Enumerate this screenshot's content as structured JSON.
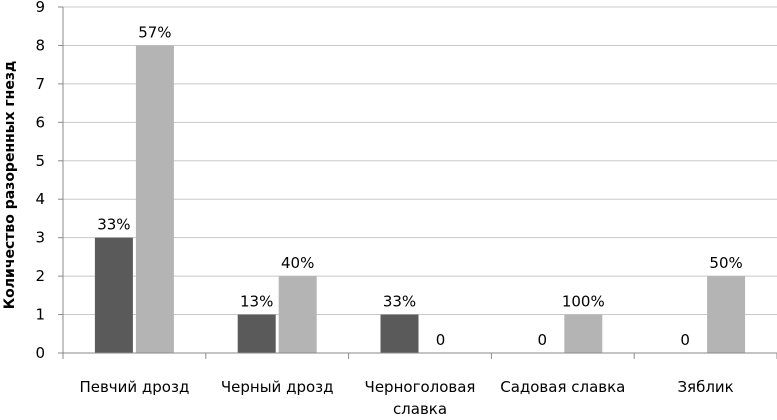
{
  "chart_data": {
    "type": "bar",
    "title": "",
    "xlabel": "",
    "ylabel": "Количество разоренных гнезд",
    "ylim": [
      0,
      9
    ],
    "yticks": [
      0,
      1,
      2,
      3,
      4,
      5,
      6,
      7,
      8,
      9
    ],
    "grid": true,
    "legend": "none",
    "categories": [
      [
        "Певчий дрозд"
      ],
      [
        "Черный дрозд"
      ],
      [
        "Черноголовая",
        "славка"
      ],
      [
        "Садовая славка"
      ],
      [
        "Зяблик"
      ]
    ],
    "series": [
      {
        "color": "#5a5a5a",
        "values": [
          3,
          1,
          1,
          0,
          0
        ],
        "labels": [
          "33%",
          "13%",
          "33%",
          "0",
          "0"
        ]
      },
      {
        "color": "#b4b4b4",
        "values": [
          8,
          2,
          0,
          1,
          2
        ],
        "labels": [
          "57%",
          "40%",
          "0",
          "100%",
          "50%"
        ]
      }
    ]
  }
}
